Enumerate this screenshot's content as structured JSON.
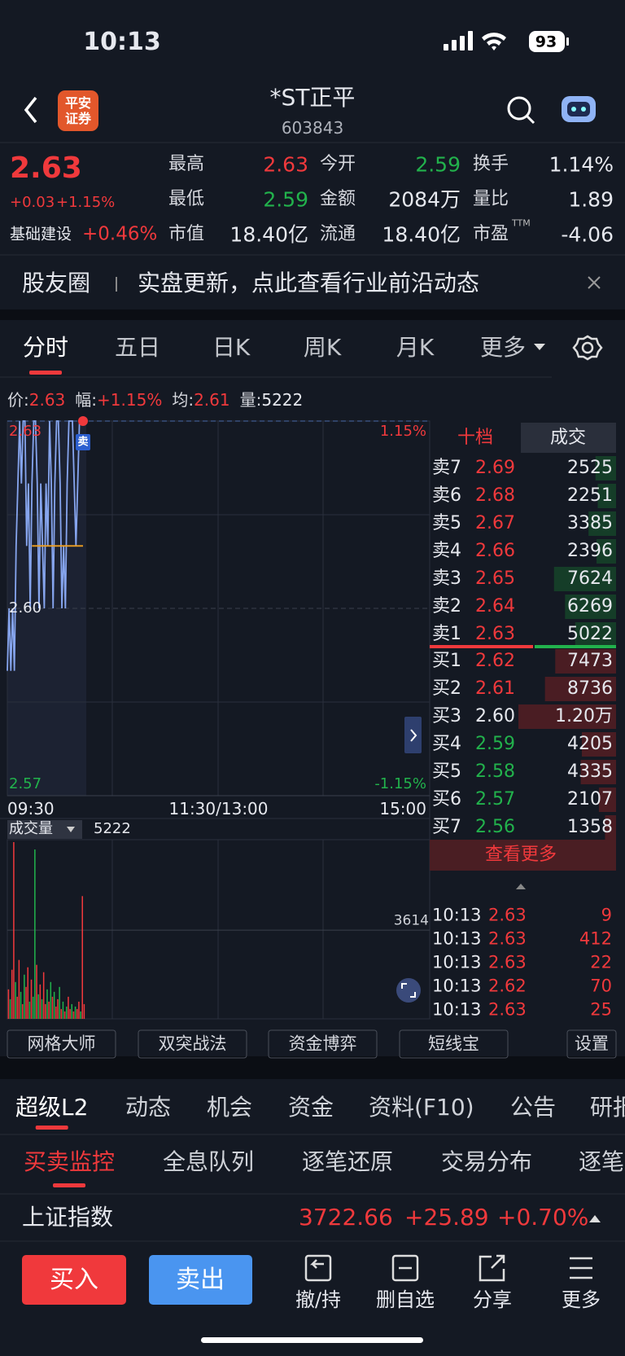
{
  "status_bar": {
    "time": "10:13",
    "battery": "93"
  },
  "header": {
    "logo": [
      "平安",
      "证券"
    ],
    "title": "*ST正平",
    "code": "603843"
  },
  "quote": {
    "price": "2.63",
    "change": "+0.03",
    "change_pct": "+1.15%",
    "sector": "基础建设",
    "sector_pct": "+0.46%",
    "fields": [
      [
        {
          "label": "最高",
          "value": "2.63",
          "color": "red"
        },
        {
          "label": "今开",
          "value": "2.59",
          "color": "green"
        },
        {
          "label": "换手",
          "value": "1.14%",
          "color": "white"
        }
      ],
      [
        {
          "label": "最低",
          "value": "2.59",
          "color": "green"
        },
        {
          "label": "金额",
          "value": "2084万",
          "color": "white"
        },
        {
          "label": "量比",
          "value": "1.89",
          "color": "white"
        }
      ],
      [
        {
          "label": "市值",
          "value": "18.40亿",
          "color": "white"
        },
        {
          "label": "流通",
          "value": "18.40亿",
          "color": "white"
        },
        {
          "label": "市盈",
          "sup": "TTM",
          "value": "-4.06",
          "color": "white"
        }
      ]
    ]
  },
  "banner": {
    "label": "股友圈",
    "text": "实盘更新，点此查看行业前沿动态"
  },
  "chart_tabs": {
    "items": [
      "分时",
      "五日",
      "日K",
      "周K",
      "月K",
      "更多"
    ],
    "active": 0
  },
  "info": [
    {
      "label": "价:",
      "value": "2.63",
      "color": "red"
    },
    {
      "label": "幅:",
      "value": "+1.15%",
      "color": "red"
    },
    {
      "label": "均:",
      "value": "2.61",
      "color": "red"
    },
    {
      "label": "量:",
      "value": "5222",
      "color": "white"
    }
  ],
  "chart_data": [
    {
      "type": "line",
      "xlim": [
        0,
        240
      ],
      "ylim": [
        2.57,
        2.63
      ],
      "yticks": [
        2.63,
        {
          "value": 2.6,
          "label": "2.60"
        },
        2.57
      ],
      "pct_labels": [
        "1.15%",
        "-1.15%"
      ],
      "x_labels": [
        "09:30",
        "11:30/13:00",
        "15:00"
      ],
      "marker": "卖",
      "series": [
        {
          "color": "#86a5ee",
          "values": [
            2.59,
            2.6,
            2.59,
            2.6,
            2.59,
            2.61,
            2.62,
            2.63,
            2.62,
            2.63,
            2.63,
            2.61,
            2.62,
            2.6,
            2.62,
            2.63,
            2.63,
            2.62,
            2.6,
            2.62,
            2.61,
            2.6,
            2.62,
            2.61,
            2.63,
            2.62,
            2.6,
            2.62,
            2.63,
            2.63,
            2.62,
            2.6,
            2.61,
            2.6,
            2.62,
            2.63,
            2.63,
            2.63,
            2.62,
            2.61,
            2.62,
            2.63,
            2.63,
            2.63
          ]
        },
        {
          "color": "#f0a020",
          "values": [
            null,
            null,
            null,
            null,
            null,
            null,
            null,
            null,
            null,
            null,
            null,
            null,
            null,
            null,
            2.61,
            2.61,
            2.61,
            2.61,
            2.61,
            2.61,
            2.61,
            2.61,
            2.61,
            2.61,
            2.61,
            2.61,
            2.61,
            2.61,
            2.61,
            2.61,
            2.61,
            2.61,
            2.61,
            2.61,
            2.61,
            2.61,
            2.61,
            2.61,
            2.61,
            2.61,
            2.61,
            2.61,
            2.61,
            2.61
          ]
        }
      ]
    },
    {
      "type": "bar",
      "title": "成交量",
      "value_label": "5222",
      "xlim": [
        0,
        240
      ],
      "ylim": [
        0,
        7300
      ],
      "yticks": [
        3614
      ],
      "values": [
        1200,
        800,
        2000,
        7200,
        1500,
        900,
        2400,
        1100,
        600,
        1800,
        1300,
        2100,
        700,
        1600,
        900,
        6900,
        2200,
        1000,
        1400,
        800,
        1900,
        600,
        1200,
        700,
        1500,
        900,
        1100,
        500,
        800,
        1300,
        400,
        700,
        300,
        500,
        900,
        400,
        600,
        300,
        500,
        400,
        700,
        300,
        5000,
        600
      ],
      "colors": [
        "#f0393c",
        "#22b24c",
        "#f0393c",
        "#f0393c",
        "#22b24c",
        "#f0393c",
        "#f0393c",
        "#22b24c",
        "#f0393c",
        "#22b24c",
        "#f0393c",
        "#f0393c",
        "#22b24c",
        "#f0393c",
        "#22b24c",
        "#22b24c",
        "#f0393c",
        "#22b24c",
        "#f0393c",
        "#22b24c",
        "#f0393c",
        "#f0393c",
        "#22b24c",
        "#f0393c",
        "#22b24c",
        "#f0393c",
        "#22b24c",
        "#f0393c",
        "#f0393c",
        "#22b24c",
        "#f0393c",
        "#22b24c",
        "#f0393c",
        "#22b24c",
        "#f0393c",
        "#f0393c",
        "#22b24c",
        "#f0393c",
        "#22b24c",
        "#f0393c",
        "#f0393c",
        "#22b24c",
        "#f0393c",
        "#f0393c"
      ]
    }
  ],
  "order_book": {
    "tabs": [
      "十档",
      "成交"
    ],
    "asks": [
      {
        "label": "卖7",
        "price": "2.69",
        "volume": 2525,
        "color": "red"
      },
      {
        "label": "卖6",
        "price": "2.68",
        "volume": 2251,
        "color": "red"
      },
      {
        "label": "卖5",
        "price": "2.67",
        "volume": 3385,
        "color": "red"
      },
      {
        "label": "卖4",
        "price": "2.66",
        "volume": 2396,
        "color": "red"
      },
      {
        "label": "卖3",
        "price": "2.65",
        "volume": 7624,
        "color": "red"
      },
      {
        "label": "卖2",
        "price": "2.64",
        "volume": 6269,
        "color": "red"
      },
      {
        "label": "卖1",
        "price": "2.63",
        "volume": 5022,
        "color": "red"
      }
    ],
    "bids": [
      {
        "label": "买1",
        "price": "2.62",
        "volume": 7473,
        "color": "red"
      },
      {
        "label": "买2",
        "price": "2.61",
        "volume": 8736,
        "color": "red"
      },
      {
        "label": "买3",
        "price": "2.60",
        "volume": 12000,
        "volume_label": "1.20万",
        "color": "white"
      },
      {
        "label": "买4",
        "price": "2.59",
        "volume": 4205,
        "color": "green"
      },
      {
        "label": "买5",
        "price": "2.58",
        "volume": 4335,
        "color": "green"
      },
      {
        "label": "买6",
        "price": "2.57",
        "volume": 2107,
        "color": "green"
      },
      {
        "label": "买7",
        "price": "2.56",
        "volume": 1358,
        "color": "green"
      }
    ],
    "more": "查看更多"
  },
  "trades": [
    {
      "time": "10:13",
      "price": "2.63",
      "volume": "9",
      "color": "red"
    },
    {
      "time": "10:13",
      "price": "2.63",
      "volume": "412",
      "color": "red"
    },
    {
      "time": "10:13",
      "price": "2.63",
      "volume": "22",
      "color": "red"
    },
    {
      "time": "10:13",
      "price": "2.62",
      "volume": "70",
      "color": "red"
    },
    {
      "time": "10:13",
      "price": "2.63",
      "volume": "25",
      "color": "red"
    }
  ],
  "tools": [
    "网格大师",
    "双突战法",
    "资金博弈",
    "短线宝",
    "设置"
  ],
  "tabs_main": {
    "items": [
      "超级L2",
      "动态",
      "机会",
      "资金",
      "资料(F10)",
      "公告",
      "研报"
    ],
    "active": 0
  },
  "tabs_sub": {
    "items": [
      "买卖监控",
      "全息队列",
      "逐笔还原",
      "交易分布",
      "逐笔"
    ],
    "active": 0
  },
  "index": {
    "name": "上证指数",
    "value": "3722.66",
    "change": "+25.89",
    "change_pct": "+0.70%"
  },
  "actions": {
    "buy": "买入",
    "sell": "卖出",
    "items": [
      "撤/持",
      "删自选",
      "分享",
      "更多"
    ]
  }
}
